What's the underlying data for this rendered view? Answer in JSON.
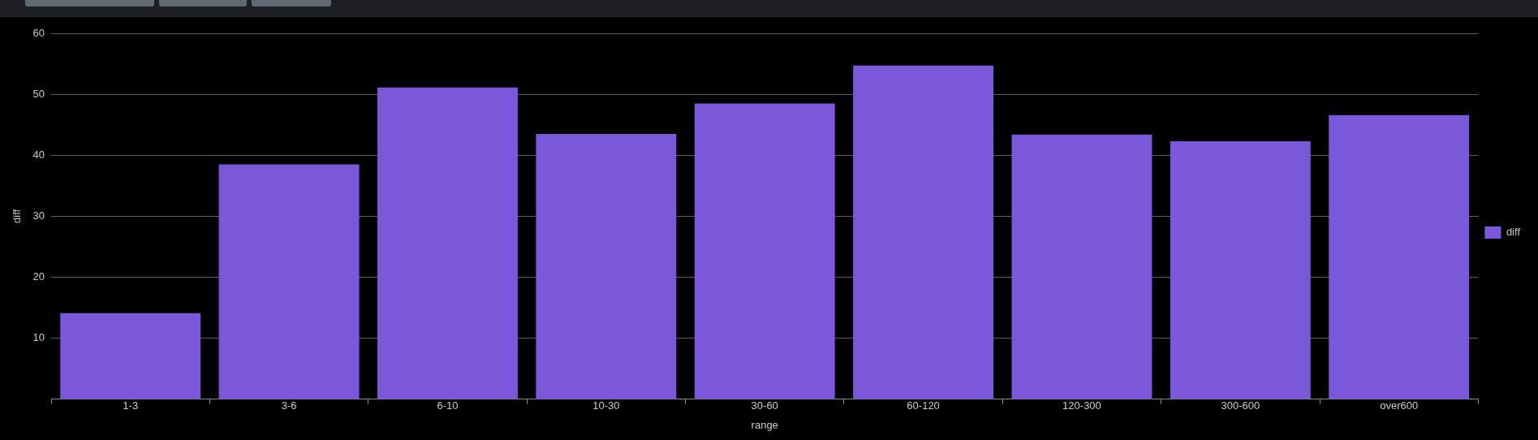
{
  "chart_data": {
    "type": "bar",
    "xlabel": "range",
    "ylabel": "diff",
    "categories": [
      "1-3",
      "3-6",
      "6-10",
      "10-30",
      "30-60",
      "60-120",
      "120-300",
      "300-600",
      "over600"
    ],
    "series": [
      {
        "name": "diff",
        "color": "#7b58d9",
        "values": [
          14.1,
          38.5,
          51.1,
          43.5,
          48.5,
          54.7,
          43.4,
          42.3,
          46.6
        ]
      }
    ],
    "ylim": [
      0,
      60
    ],
    "yticks": [
      10,
      20,
      30,
      40,
      50,
      60
    ],
    "grid": "y",
    "legend": "right"
  }
}
